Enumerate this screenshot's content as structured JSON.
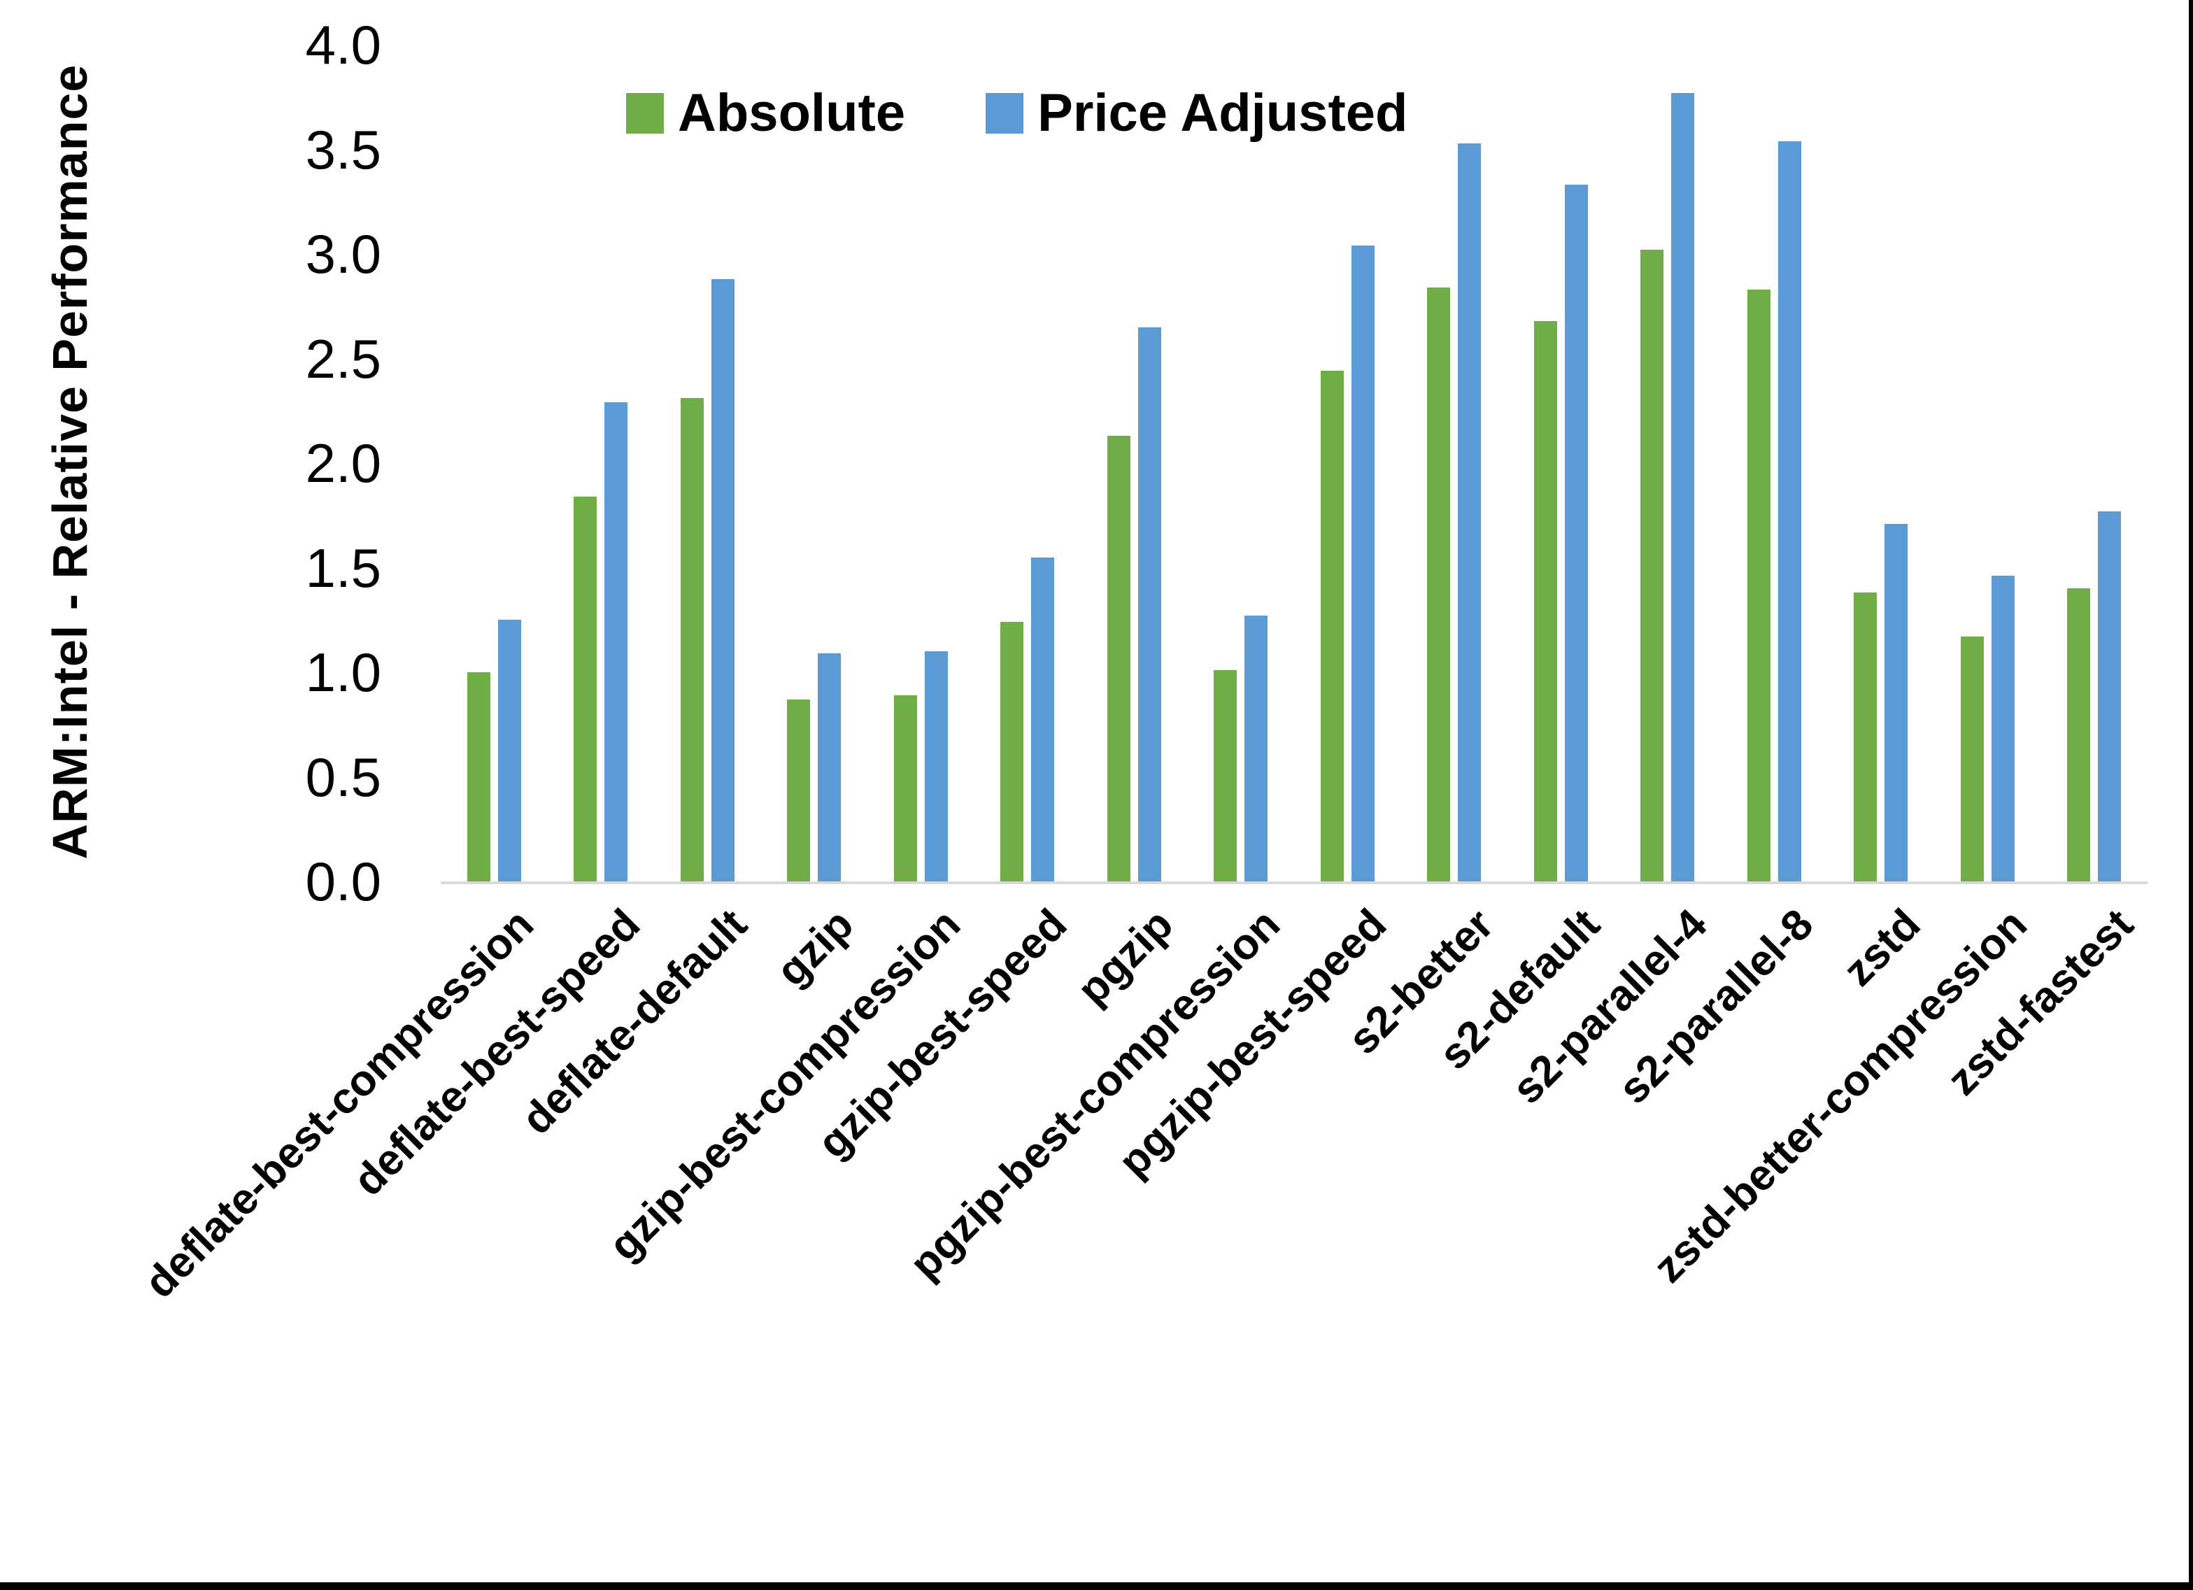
{
  "chart_data": {
    "type": "bar",
    "title": "",
    "ylabel": "ARM:Intel - Relative Performance",
    "xlabel": "",
    "ylim": [
      0.0,
      4.0
    ],
    "ytick_step": 0.5,
    "ytick_labels": [
      "0.0",
      "0.5",
      "1.0",
      "1.5",
      "2.0",
      "2.5",
      "3.0",
      "3.5",
      "4.0"
    ],
    "grid": false,
    "legend_position": "top-center",
    "categories": [
      "deflate-best-compression",
      "deflate-best-speed",
      "deflate-default",
      "gzip",
      "gzip-best-compression",
      "gzip-best-speed",
      "pgzip",
      "pgzip-best-compression",
      "pgzip-best-speed",
      "s2-better",
      "s2-default",
      "s2-parallel-4",
      "s2-parallel-8",
      "zstd",
      "zstd-better-compression",
      "zstd-fastest"
    ],
    "series": [
      {
        "name": "Absolute",
        "color": "#70AD47",
        "values": [
          1.0,
          1.84,
          2.31,
          0.87,
          0.89,
          1.24,
          2.13,
          1.01,
          2.44,
          2.84,
          2.68,
          3.02,
          2.83,
          1.38,
          1.17,
          1.4
        ]
      },
      {
        "name": "Price Adjusted",
        "color": "#5B9BD5",
        "values": [
          1.25,
          2.29,
          2.88,
          1.09,
          1.1,
          1.55,
          2.65,
          1.27,
          3.04,
          3.53,
          3.33,
          3.77,
          3.54,
          1.71,
          1.46,
          1.77
        ]
      }
    ],
    "axis_line_color": "#d9d9d9"
  }
}
